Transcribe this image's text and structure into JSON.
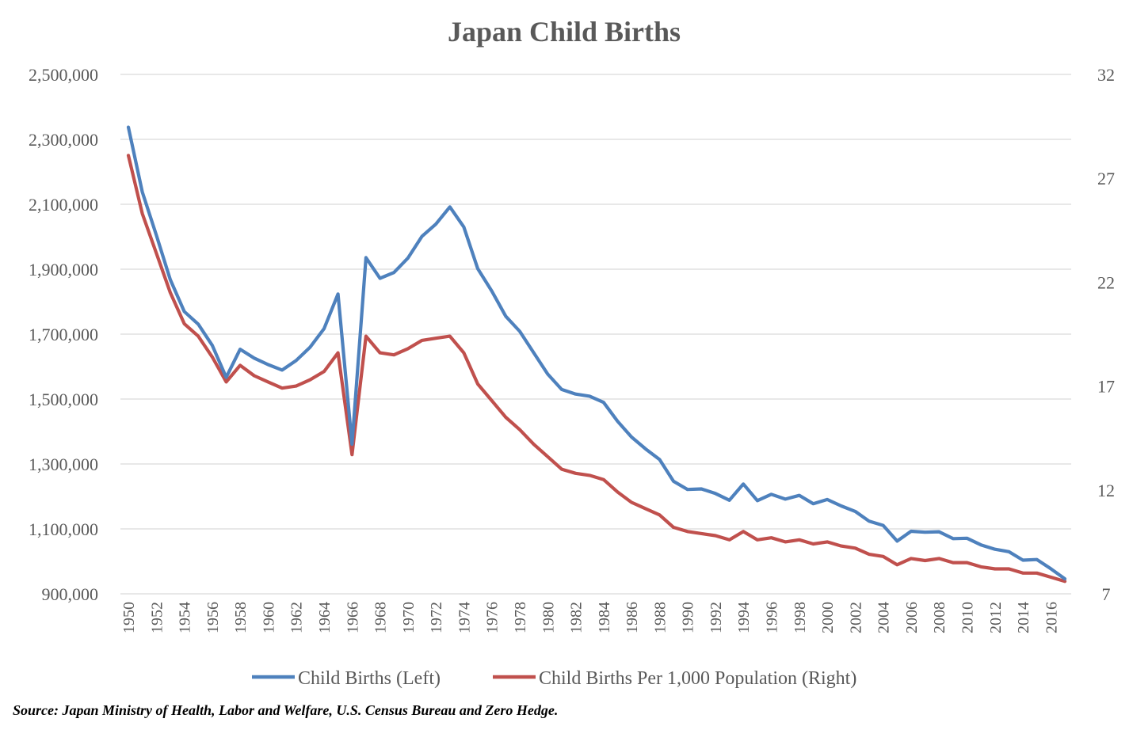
{
  "chart_data": {
    "type": "line",
    "title": "Japan Child Births",
    "source": "Source: Japan Ministry of Health, Labor and Welfare, U.S. Census Bureau and Zero Hedge.",
    "x": [
      1950,
      1951,
      1952,
      1953,
      1954,
      1955,
      1956,
      1957,
      1958,
      1959,
      1960,
      1961,
      1962,
      1963,
      1964,
      1965,
      1966,
      1967,
      1968,
      1969,
      1970,
      1971,
      1972,
      1973,
      1974,
      1975,
      1976,
      1977,
      1978,
      1979,
      1980,
      1981,
      1982,
      1983,
      1984,
      1985,
      1986,
      1987,
      1988,
      1989,
      1990,
      1991,
      1992,
      1993,
      1994,
      1995,
      1996,
      1997,
      1998,
      1999,
      2000,
      2001,
      2002,
      2003,
      2004,
      2005,
      2006,
      2007,
      2008,
      2009,
      2010,
      2011,
      2012,
      2013,
      2014,
      2015,
      2016,
      2017
    ],
    "x_tick_labels": [
      "1950",
      "1952",
      "1954",
      "1956",
      "1958",
      "1960",
      "1962",
      "1964",
      "1966",
      "1968",
      "1970",
      "1972",
      "1974",
      "1976",
      "1978",
      "1980",
      "1982",
      "1984",
      "1986",
      "1988",
      "1990",
      "1992",
      "1994",
      "1996",
      "1998",
      "2000",
      "2002",
      "2004",
      "2006",
      "2008",
      "2010",
      "2012",
      "2014",
      "2016"
    ],
    "y_left": {
      "ylim": [
        900000,
        2500000
      ],
      "tick_values": [
        900000,
        1100000,
        1300000,
        1500000,
        1700000,
        1900000,
        2100000,
        2300000,
        2500000
      ],
      "tick_labels": [
        "900,000",
        "1,100,000",
        "1,300,000",
        "1,500,000",
        "1,700,000",
        "1,900,000",
        "2,100,000",
        "2,300,000",
        "2,500,000"
      ]
    },
    "y_right": {
      "ylim": [
        7,
        32
      ],
      "tick_values": [
        7,
        12,
        17,
        22,
        27,
        32
      ],
      "tick_labels": [
        "7",
        "12",
        "17",
        "22",
        "27",
        "32"
      ]
    },
    "legend_position": "bottom",
    "series": [
      {
        "name": "Child Births (Left)",
        "axis": "left",
        "color": "#4e81bd",
        "values": [
          2337507,
          2137689,
          2005162,
          1868040,
          1769580,
          1730692,
          1665278,
          1566713,
          1653469,
          1626088,
          1606041,
          1589372,
          1618616,
          1659521,
          1716761,
          1823697,
          1360974,
          1935647,
          1871839,
          1889815,
          1934239,
          2000973,
          2038682,
          2091983,
          2029989,
          1901440,
          1832617,
          1755100,
          1708643,
          1642580,
          1576889,
          1529455,
          1515392,
          1508687,
          1489780,
          1431577,
          1382946,
          1346658,
          1314006,
          1246802,
          1221585,
          1223245,
          1208989,
          1188282,
          1238328,
          1187064,
          1206555,
          1191665,
          1203147,
          1177669,
          1190547,
          1170662,
          1153855,
          1123610,
          1110721,
          1062530,
          1092674,
          1089818,
          1091156,
          1070035,
          1071304,
          1050806,
          1037231,
          1029816,
          1003539,
          1005677,
          976978,
          946065
        ]
      },
      {
        "name": "Child Births Per 1,000 Population (Right)",
        "axis": "right",
        "color": "#c0504d",
        "values": [
          28.1,
          25.3,
          23.4,
          21.5,
          20.0,
          19.4,
          18.4,
          17.2,
          18.0,
          17.5,
          17.2,
          16.9,
          17.0,
          17.3,
          17.7,
          18.6,
          13.7,
          19.4,
          18.6,
          18.5,
          18.8,
          19.2,
          19.3,
          19.4,
          18.6,
          17.1,
          16.3,
          15.5,
          14.9,
          14.2,
          13.6,
          13.0,
          12.8,
          12.7,
          12.5,
          11.9,
          11.4,
          11.1,
          10.8,
          10.2,
          10.0,
          9.9,
          9.8,
          9.6,
          10.0,
          9.6,
          9.7,
          9.5,
          9.6,
          9.4,
          9.5,
          9.3,
          9.2,
          8.9,
          8.8,
          8.4,
          8.7,
          8.6,
          8.7,
          8.5,
          8.5,
          8.3,
          8.2,
          8.2,
          8.0,
          8.0,
          7.8,
          7.6
        ]
      }
    ]
  }
}
